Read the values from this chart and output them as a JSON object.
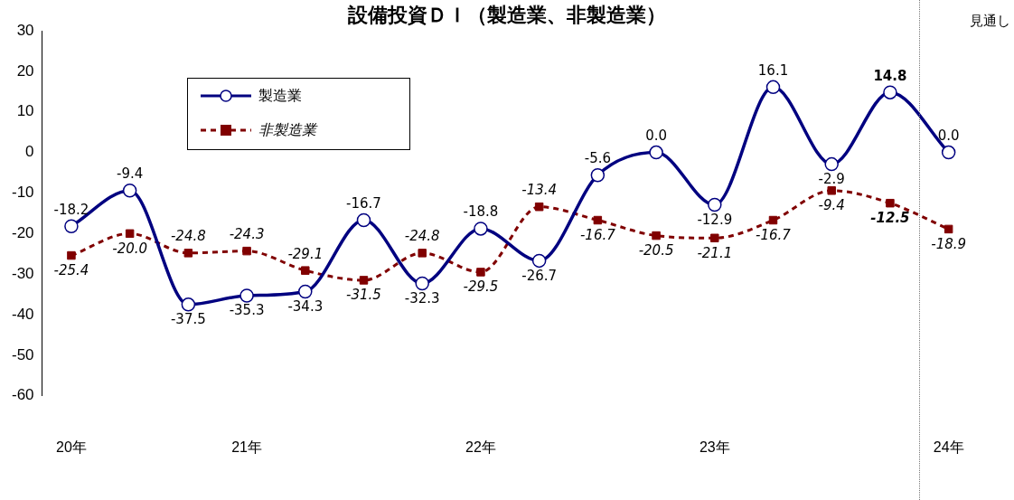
{
  "chart_data": {
    "type": "line",
    "title": "設備投資ＤＩ（製造業、非製造業）",
    "categories": [
      "20年",
      null,
      null,
      "21年",
      null,
      null,
      null,
      "22年",
      null,
      null,
      null,
      "23年",
      null,
      null,
      null,
      "24年"
    ],
    "series": [
      {
        "name": "製造業",
        "color": "#000080",
        "marker": "circle",
        "line_style": "solid",
        "values": [
          -18.2,
          -9.4,
          -37.5,
          -35.3,
          -34.3,
          -16.7,
          -32.3,
          -18.8,
          -26.7,
          -5.6,
          0.0,
          -12.9,
          16.1,
          -2.9,
          14.8,
          0.0
        ],
        "value_labels": [
          "-18.2",
          "-9.4",
          "-37.5",
          "-35.3",
          "-34.3",
          "-16.7",
          "-32.3",
          "-18.8",
          "-26.7",
          "-5.6",
          "0.0",
          "-12.9",
          "16.1",
          "-2.9",
          "14.8",
          "0.0"
        ]
      },
      {
        "name": "非製造業",
        "color": "#800000",
        "marker": "square",
        "line_style": "dashed",
        "values": [
          -25.4,
          -20.0,
          -24.8,
          -24.3,
          -29.1,
          -31.5,
          -24.8,
          -29.5,
          -13.4,
          -16.7,
          -20.5,
          -21.1,
          -16.7,
          -9.4,
          -12.5,
          -18.9
        ],
        "value_labels": [
          "-25.4",
          "-20.0",
          "-24.8",
          "-24.3",
          "-29.1",
          "-31.5",
          "-24.8",
          "-29.5",
          "-13.4",
          "-16.7",
          "-20.5",
          "-21.1",
          "-16.7",
          "-9.4",
          "-12.5",
          "-18.9"
        ]
      }
    ],
    "ylim": [
      -60,
      30
    ],
    "yticks": [
      -60,
      -50,
      -40,
      -30,
      -20,
      -10,
      0,
      10,
      20,
      30
    ],
    "grid": false,
    "legend": "top left",
    "annotations": [
      "見通し"
    ]
  }
}
